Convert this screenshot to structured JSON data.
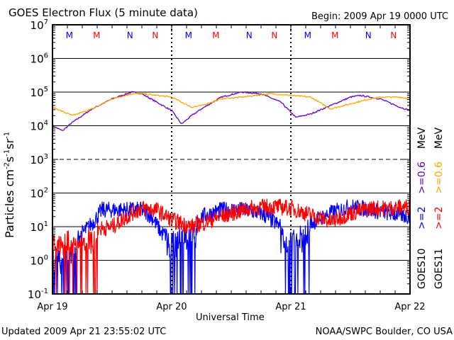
{
  "header": {
    "title": "GOES Electron Flux (5 minute data)",
    "begin": "Begin: 2009 Apr 19 0000 UTC"
  },
  "footer": {
    "updated": "Updated 2009 Apr 21 23:55:02 UTC",
    "credit": "NOAA/SWPC Boulder, CO USA"
  },
  "chart_data": {
    "type": "line",
    "title": "GOES Electron Flux (5 minute data)",
    "xlabel": "Universal Time",
    "ylabel": "Particles cm-2 s-1 sr-1",
    "ylabel_parts": {
      "base": "Particles cm",
      "e1": "-2",
      "s": "s",
      "e2": "-1",
      "sr": "sr",
      "e3": "-1"
    },
    "yscale": "log",
    "ylim_log10": [
      -1,
      7
    ],
    "yticks": [
      {
        "b": "10",
        "e": "-1"
      },
      {
        "b": "10",
        "e": "0"
      },
      {
        "b": "10",
        "e": "1"
      },
      {
        "b": "10",
        "e": "2"
      },
      {
        "b": "10",
        "e": "3"
      },
      {
        "b": "10",
        "e": "4"
      },
      {
        "b": "10",
        "e": "5"
      },
      {
        "b": "10",
        "e": "6"
      },
      {
        "b": "10",
        "e": "7"
      }
    ],
    "xlim_hours": [
      0,
      72
    ],
    "xticks": [
      {
        "h": 0,
        "label": "Apr 19"
      },
      {
        "h": 24,
        "label": "Apr 20"
      },
      {
        "h": 48,
        "label": "Apr 21"
      },
      {
        "h": 72,
        "label": "Apr 22"
      }
    ],
    "markers": [
      {
        "h": 3.4,
        "label": "M",
        "color": "#0000ff"
      },
      {
        "h": 8.9,
        "label": "M",
        "color": "#ff0000"
      },
      {
        "h": 15.6,
        "label": "N",
        "color": "#0000ff"
      },
      {
        "h": 20.7,
        "label": "N",
        "color": "#ff0000"
      },
      {
        "h": 27.4,
        "label": "M",
        "color": "#0000ff"
      },
      {
        "h": 32.9,
        "label": "M",
        "color": "#ff0000"
      },
      {
        "h": 39.6,
        "label": "N",
        "color": "#0000ff"
      },
      {
        "h": 44.7,
        "label": "N",
        "color": "#ff0000"
      },
      {
        "h": 51.4,
        "label": "M",
        "color": "#0000ff"
      },
      {
        "h": 56.9,
        "label": "M",
        "color": "#ff0000"
      },
      {
        "h": 63.6,
        "label": "N",
        "color": "#0000ff"
      },
      {
        "h": 68.7,
        "label": "N",
        "color": "#ff0000"
      }
    ],
    "legend": {
      "placement": "right",
      "groups": [
        {
          "sat": "GOES10",
          "items": [
            {
              "label": ">=2",
              "color": "#0000ff"
            },
            {
              "label": ">=0.6",
              "color": "#6600cc"
            }
          ],
          "unit": "MeV"
        },
        {
          "sat": "GOES11",
          "items": [
            {
              "label": ">=2",
              "color": "#ff0000"
            },
            {
              "label": ">=0.6",
              "color": "#ffa500"
            }
          ],
          "unit": "MeV"
        }
      ]
    },
    "series": [
      {
        "name": "GOES10 >=0.6 MeV",
        "color": "#6600cc",
        "noisy": false,
        "x_hours": [
          0,
          2,
          4,
          8,
          12,
          16,
          18,
          21,
          24,
          26,
          28,
          30,
          34,
          38,
          42,
          46,
          49,
          52,
          56,
          60,
          62,
          66,
          70,
          72
        ],
        "log10_values": [
          4.0,
          3.85,
          4.1,
          4.5,
          4.8,
          5.0,
          4.95,
          4.7,
          4.45,
          4.05,
          4.3,
          4.5,
          4.85,
          5.0,
          4.95,
          4.7,
          4.25,
          4.35,
          4.6,
          4.85,
          4.9,
          4.8,
          4.55,
          4.45
        ]
      },
      {
        "name": "GOES11 >=0.6 MeV",
        "color": "#ffa500",
        "noisy": false,
        "x_hours": [
          0,
          4,
          8,
          12,
          16,
          18,
          21,
          24,
          28,
          30,
          34,
          38,
          44,
          48,
          52,
          56,
          60,
          64,
          66,
          70,
          72
        ],
        "log10_values": [
          4.55,
          4.3,
          4.5,
          4.8,
          4.95,
          4.95,
          4.9,
          4.85,
          4.55,
          4.6,
          4.8,
          4.85,
          4.95,
          4.9,
          4.85,
          4.5,
          4.65,
          4.8,
          4.85,
          4.85,
          4.8
        ]
      },
      {
        "name": "GOES10 >=2 MeV",
        "color": "#0000ff",
        "noisy": true,
        "x_hours": [
          0,
          3,
          6,
          8,
          10,
          14,
          18,
          20,
          22,
          24,
          26,
          28,
          30,
          34,
          38,
          42,
          46,
          48,
          50,
          52,
          56,
          60,
          64,
          68,
          72
        ],
        "log10_values": [
          0.3,
          0.4,
          0.8,
          1.1,
          1.5,
          1.5,
          1.5,
          1.3,
          0.8,
          0.7,
          0.9,
          1.0,
          1.3,
          1.5,
          1.5,
          1.4,
          1.0,
          0.9,
          0.9,
          1.1,
          1.4,
          1.6,
          1.5,
          1.4,
          1.3
        ],
        "dropouts_hours": [
          [
            0,
            5
          ],
          [
            23,
            29
          ],
          [
            46,
            52
          ]
        ]
      },
      {
        "name": "GOES11 >=2 MeV",
        "color": "#ff0000",
        "noisy": true,
        "x_hours": [
          0,
          4,
          8,
          12,
          16,
          18,
          21,
          24,
          28,
          32,
          36,
          40,
          44,
          48,
          52,
          56,
          60,
          64,
          68,
          72
        ],
        "log10_values": [
          0.8,
          0.7,
          0.9,
          1.0,
          1.4,
          1.55,
          1.5,
          1.2,
          1.0,
          1.2,
          1.4,
          1.55,
          1.6,
          1.55,
          1.35,
          1.15,
          1.4,
          1.55,
          1.55,
          1.6
        ],
        "dropouts_hours": [
          [
            0,
            9
          ]
        ]
      }
    ]
  }
}
